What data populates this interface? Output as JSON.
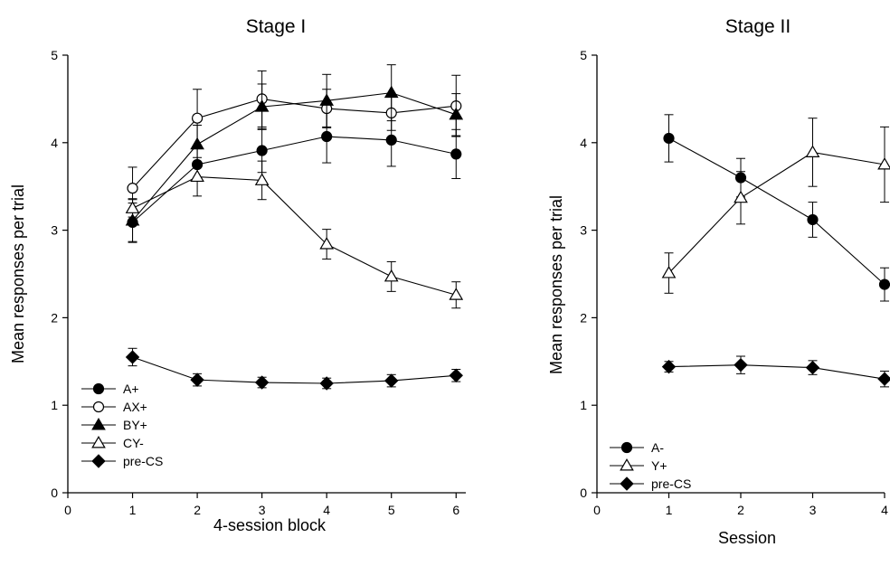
{
  "chart_data": [
    {
      "type": "line",
      "title": "Stage I",
      "xlabel": "4-session block",
      "ylabel": "Mean responses per trial",
      "xlim": [
        0,
        6.15
      ],
      "ylim": [
        0,
        5
      ],
      "xticks": [
        0,
        1,
        2,
        3,
        4,
        5,
        6
      ],
      "yticks": [
        0,
        1,
        2,
        3,
        4,
        5
      ],
      "grid": false,
      "legend_position": "bottom-left",
      "x": [
        1,
        2,
        3,
        4,
        5,
        6
      ],
      "series": [
        {
          "name": "A+",
          "marker": "filled-circle",
          "values": [
            3.09,
            3.75,
            3.91,
            4.07,
            4.03,
            3.87
          ],
          "error": [
            0.22,
            0.18,
            0.25,
            0.3,
            0.3,
            0.28
          ]
        },
        {
          "name": "AX+",
          "marker": "open-circle",
          "values": [
            3.48,
            4.28,
            4.5,
            4.39,
            4.34,
            4.42
          ],
          "error": [
            0.24,
            0.33,
            0.32,
            0.22,
            0.2,
            0.35
          ]
        },
        {
          "name": "BY+",
          "marker": "filled-triangle",
          "values": [
            3.11,
            3.98,
            4.41,
            4.48,
            4.57,
            4.32
          ],
          "error": [
            0.25,
            0.22,
            0.26,
            0.3,
            0.32,
            0.24
          ]
        },
        {
          "name": "CY-",
          "marker": "open-triangle",
          "values": [
            3.25,
            3.61,
            3.57,
            2.84,
            2.47,
            2.26
          ],
          "error": [
            0.1,
            0.22,
            0.22,
            0.17,
            0.17,
            0.15
          ]
        },
        {
          "name": "pre-CS",
          "marker": "filled-diamond",
          "values": [
            1.55,
            1.29,
            1.26,
            1.25,
            1.28,
            1.34
          ],
          "error": [
            0.1,
            0.07,
            0.06,
            0.06,
            0.07,
            0.07
          ]
        }
      ]
    },
    {
      "type": "line",
      "title": "Stage II",
      "xlabel": "Session",
      "ylabel": "Mean responses per trial",
      "xlim": [
        0,
        4
      ],
      "ylim": [
        0,
        5
      ],
      "xticks": [
        0,
        1,
        2,
        3,
        4
      ],
      "yticks": [
        0,
        1,
        2,
        3,
        4,
        5
      ],
      "grid": false,
      "legend_position": "bottom-left",
      "x": [
        1,
        2,
        3,
        4
      ],
      "series": [
        {
          "name": "A-",
          "marker": "filled-circle",
          "values": [
            4.05,
            3.6,
            3.12,
            2.38
          ],
          "error": [
            0.27,
            0.22,
            0.2,
            0.19
          ]
        },
        {
          "name": "Y+",
          "marker": "open-triangle",
          "values": [
            2.51,
            3.37,
            3.89,
            3.75
          ],
          "error": [
            0.23,
            0.3,
            0.39,
            0.43
          ]
        },
        {
          "name": "pre-CS",
          "marker": "filled-diamond",
          "values": [
            1.44,
            1.46,
            1.43,
            1.3
          ],
          "error": [
            0.06,
            0.1,
            0.08,
            0.09
          ]
        }
      ]
    }
  ]
}
